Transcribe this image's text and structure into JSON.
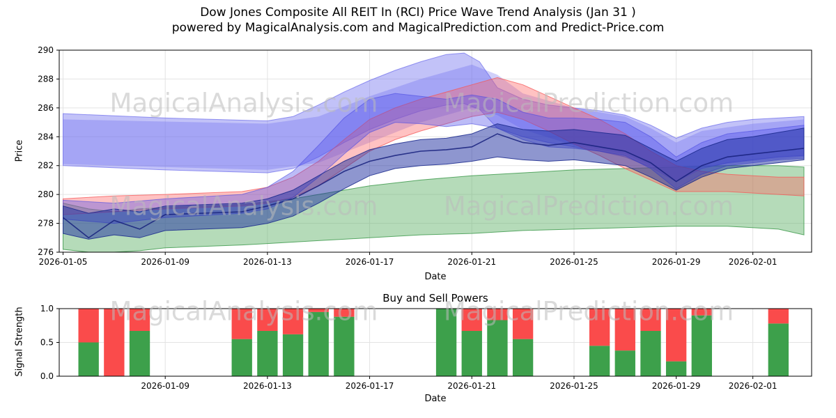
{
  "header": {
    "title_line1": "Dow Jones Composite All REIT In (RCI) Price Wave Trend Analysis (Jan 31 )",
    "title_line2": "powered by MagicalAnalysis.com and MagicalPrediction.com and Predict-Price.com"
  },
  "watermarks": {
    "analysis": "MagicalAnalysis.com",
    "prediction": "MagicalPrediction.com"
  },
  "chart_data": [
    {
      "type": "area",
      "name": "price-wave-trend",
      "xlabel": "Date",
      "ylabel": "Price",
      "ylim": [
        276,
        290
      ],
      "yticks": [
        276,
        278,
        280,
        282,
        284,
        286,
        288,
        290
      ],
      "xlim_days": [
        -0.15,
        29.3
      ],
      "grid": true,
      "xticks": [
        {
          "day": 0,
          "label": "2026-01-05"
        },
        {
          "day": 4,
          "label": "2026-01-09"
        },
        {
          "day": 8,
          "label": "2026-01-13"
        },
        {
          "day": 12,
          "label": "2026-01-17"
        },
        {
          "day": 16,
          "label": "2026-01-21"
        },
        {
          "day": 20,
          "label": "2026-01-25"
        },
        {
          "day": 24,
          "label": "2026-01-29"
        },
        {
          "day": 27,
          "label": "2026-02-01"
        }
      ],
      "bands": [
        {
          "name": "green-support-band",
          "fill": "rgba(90,175,100,0.45)",
          "edge": "rgba(55,150,70,0.8)",
          "x": [
            0,
            1,
            2,
            3,
            4,
            7,
            8,
            9,
            10,
            11,
            12,
            14,
            16,
            18,
            20,
            22,
            24,
            26,
            28,
            29
          ],
          "upper": [
            279.4,
            279.0,
            278.8,
            279.0,
            279.1,
            279.3,
            279.5,
            279.7,
            280.0,
            280.3,
            280.6,
            281.0,
            281.3,
            281.5,
            281.7,
            281.8,
            281.9,
            282.0,
            282.0,
            281.9
          ],
          "lower": [
            276.2,
            276.0,
            276.0,
            276.1,
            276.3,
            276.5,
            276.6,
            276.7,
            276.8,
            276.9,
            277.0,
            277.2,
            277.3,
            277.5,
            277.6,
            277.7,
            277.8,
            277.8,
            277.6,
            277.2
          ]
        },
        {
          "name": "outer-blue-wave-band",
          "fill": "rgba(120,120,240,0.45)",
          "edge": "rgba(105,105,235,0.7)",
          "x": [
            0,
            4,
            8,
            9,
            10,
            11,
            12,
            13,
            14,
            15,
            15.7,
            16.3,
            17,
            18,
            19,
            20,
            21,
            22,
            23,
            24,
            25,
            26,
            27,
            28,
            29
          ],
          "upper": [
            285.6,
            285.3,
            285.1,
            285.4,
            286.2,
            287.1,
            287.9,
            288.6,
            289.2,
            289.7,
            289.8,
            289.2,
            287.4,
            286.6,
            286.2,
            286.0,
            285.8,
            285.5,
            284.8,
            283.9,
            284.6,
            285.0,
            285.2,
            285.3,
            285.4
          ],
          "lower": [
            282.0,
            281.7,
            281.5,
            281.8,
            282.6,
            283.6,
            284.5,
            285.2,
            285.8,
            286.2,
            286.3,
            285.9,
            284.6,
            284.0,
            283.6,
            283.3,
            283.0,
            282.6,
            281.9,
            280.9,
            281.8,
            282.2,
            282.4,
            282.6,
            282.7
          ]
        },
        {
          "name": "secondary-blue-wave-band",
          "fill": "rgba(100,100,240,0.30)",
          "edge": "",
          "x": [
            0,
            8,
            10,
            12,
            14,
            16,
            17,
            18,
            20,
            22,
            23,
            24,
            25,
            27,
            29
          ],
          "upper": [
            285.2,
            284.9,
            285.4,
            286.8,
            288.0,
            289.0,
            288.3,
            287.0,
            286.0,
            285.4,
            284.6,
            283.6,
            284.4,
            284.9,
            285.2
          ],
          "lower": [
            282.1,
            281.7,
            282.2,
            283.6,
            285.0,
            286.0,
            285.5,
            284.5,
            283.4,
            282.8,
            282.0,
            281.0,
            281.9,
            282.3,
            282.6
          ]
        },
        {
          "name": "red-resistance-band",
          "fill": "rgba(255,95,95,0.38)",
          "edge": "rgba(245,85,85,0.75)",
          "x": [
            0,
            2,
            4,
            7,
            8,
            9,
            10,
            11,
            12,
            13,
            14,
            15,
            16,
            17,
            18,
            19,
            20,
            21,
            22,
            23,
            24,
            25,
            26,
            27,
            28,
            29
          ],
          "upper": [
            279.7,
            279.9,
            280.0,
            280.2,
            280.5,
            281.2,
            282.3,
            283.8,
            285.2,
            286.0,
            286.6,
            287.1,
            287.6,
            288.1,
            287.6,
            286.8,
            286.0,
            285.2,
            284.2,
            283.0,
            282.0,
            281.6,
            281.4,
            281.3,
            281.2,
            281.2
          ],
          "lower": [
            278.6,
            278.8,
            279.0,
            279.2,
            279.4,
            279.8,
            280.6,
            281.8,
            283.0,
            283.8,
            284.4,
            284.9,
            285.4,
            285.7,
            285.2,
            284.4,
            283.5,
            282.7,
            281.8,
            281.0,
            280.2,
            280.2,
            280.2,
            280.1,
            280.0,
            279.9
          ]
        },
        {
          "name": "mid-blue-wave-band",
          "fill": "rgba(80,80,235,0.38)",
          "edge": "rgba(75,75,225,0.6)",
          "x": [
            0,
            2,
            4,
            7,
            8,
            9,
            10,
            11,
            12,
            13,
            14,
            15,
            16,
            17,
            18,
            19,
            20,
            21,
            22,
            23,
            24,
            25,
            26,
            27,
            28,
            29
          ],
          "upper": [
            279.6,
            279.4,
            279.7,
            280.0,
            280.5,
            281.6,
            283.4,
            285.3,
            286.6,
            287.0,
            286.8,
            286.6,
            286.9,
            286.6,
            285.7,
            285.3,
            285.3,
            285.2,
            285.0,
            284.0,
            282.6,
            283.6,
            284.2,
            284.4,
            284.6,
            284.8
          ],
          "lower": [
            278.3,
            278.0,
            278.4,
            278.7,
            279.0,
            279.8,
            281.2,
            282.8,
            284.3,
            285.0,
            284.9,
            284.7,
            284.9,
            284.6,
            283.8,
            283.3,
            283.2,
            283.0,
            282.7,
            281.8,
            280.4,
            281.4,
            282.0,
            282.2,
            282.4,
            282.5
          ]
        },
        {
          "name": "navy-trend-band",
          "fill": "rgba(30,45,160,0.50)",
          "edge": "rgba(25,40,140,0.85)",
          "x": [
            0,
            1,
            2,
            3,
            4,
            7,
            8,
            9,
            10,
            11,
            12,
            13,
            14,
            15,
            16,
            17,
            18,
            19,
            20,
            21,
            22,
            23,
            24,
            25,
            26,
            27,
            28,
            29
          ],
          "upper": [
            279.2,
            278.7,
            279.0,
            278.8,
            279.2,
            279.4,
            279.7,
            280.3,
            281.3,
            282.3,
            283.1,
            283.5,
            283.8,
            283.9,
            284.2,
            284.9,
            284.5,
            284.4,
            284.5,
            284.3,
            284.1,
            283.2,
            282.3,
            283.2,
            283.8,
            284.0,
            284.3,
            284.6
          ],
          "lower": [
            277.3,
            276.9,
            277.2,
            277.0,
            277.5,
            277.7,
            278.0,
            278.5,
            279.4,
            280.4,
            281.3,
            281.8,
            282.0,
            282.1,
            282.3,
            282.6,
            282.4,
            282.3,
            282.4,
            282.2,
            282.0,
            281.2,
            280.3,
            281.2,
            281.8,
            282.0,
            282.2,
            282.4
          ]
        }
      ],
      "lines": [
        {
          "name": "navy-price-line",
          "color": "rgba(22,32,125,0.85)",
          "width": 1.6,
          "x": [
            0,
            1,
            2,
            3,
            4,
            7,
            8,
            9,
            10,
            11,
            12,
            13,
            14,
            15,
            16,
            17,
            18,
            19,
            20,
            21,
            22,
            23,
            24,
            25,
            26,
            27,
            28,
            29
          ],
          "y": [
            278.4,
            277.0,
            278.2,
            277.6,
            278.6,
            278.8,
            279.2,
            279.7,
            280.6,
            281.6,
            282.3,
            282.7,
            283.0,
            283.1,
            283.3,
            284.2,
            283.6,
            283.4,
            283.6,
            283.3,
            283.0,
            282.2,
            280.9,
            282.0,
            282.6,
            282.8,
            283.0,
            283.2
          ]
        }
      ]
    },
    {
      "type": "bar",
      "name": "buy-sell-powers",
      "title": "Buy and Sell Powers",
      "xlabel": "Date",
      "ylabel": "Signal Strength",
      "ylim": [
        0,
        1.0
      ],
      "yticks": [
        0,
        0.5,
        1.0
      ],
      "ytick_labels": [
        "0.0",
        "0.5",
        "1.0"
      ],
      "xlim_days": [
        -0.15,
        29.3
      ],
      "grid": true,
      "xticks": [
        {
          "day": 4,
          "label": "2026-01-09"
        },
        {
          "day": 8,
          "label": "2026-01-13"
        },
        {
          "day": 12,
          "label": "2026-01-17"
        },
        {
          "day": 16,
          "label": "2026-01-21"
        },
        {
          "day": 20,
          "label": "2026-01-25"
        },
        {
          "day": 24,
          "label": "2026-01-29"
        },
        {
          "day": 27,
          "label": "2026-02-01"
        }
      ],
      "bar_width_days": 0.8,
      "colors": {
        "buy": "#3da04b",
        "sell": "#fa4b4b"
      },
      "bars": [
        {
          "date": "2026-01-06",
          "day": 1,
          "buy": 0.5,
          "sell": 0.5
        },
        {
          "date": "2026-01-07",
          "day": 2,
          "buy": 0.0,
          "sell": 1.0
        },
        {
          "date": "2026-01-08",
          "day": 3,
          "buy": 0.67,
          "sell": 0.33
        },
        {
          "date": "2026-01-12",
          "day": 7,
          "buy": 0.55,
          "sell": 0.45
        },
        {
          "date": "2026-01-13",
          "day": 8,
          "buy": 0.67,
          "sell": 0.33
        },
        {
          "date": "2026-01-14",
          "day": 9,
          "buy": 0.62,
          "sell": 0.38
        },
        {
          "date": "2026-01-15",
          "day": 10,
          "buy": 0.95,
          "sell": 0.05
        },
        {
          "date": "2026-01-16",
          "day": 11,
          "buy": 0.88,
          "sell": 0.12
        },
        {
          "date": "2026-01-20",
          "day": 15,
          "buy": 1.0,
          "sell": 0.0
        },
        {
          "date": "2026-01-21",
          "day": 16,
          "buy": 0.67,
          "sell": 0.33
        },
        {
          "date": "2026-01-22",
          "day": 17,
          "buy": 0.83,
          "sell": 0.17
        },
        {
          "date": "2026-01-23",
          "day": 18,
          "buy": 0.55,
          "sell": 0.45
        },
        {
          "date": "2026-01-26",
          "day": 21,
          "buy": 0.45,
          "sell": 0.55
        },
        {
          "date": "2026-01-27",
          "day": 22,
          "buy": 0.38,
          "sell": 0.62
        },
        {
          "date": "2026-01-28",
          "day": 23,
          "buy": 0.67,
          "sell": 0.33
        },
        {
          "date": "2026-01-29",
          "day": 24,
          "buy": 0.22,
          "sell": 0.78
        },
        {
          "date": "2026-01-30",
          "day": 25,
          "buy": 0.9,
          "sell": 0.1
        },
        {
          "date": "2026-02-02",
          "day": 28,
          "buy": 0.78,
          "sell": 0.22
        }
      ]
    }
  ]
}
